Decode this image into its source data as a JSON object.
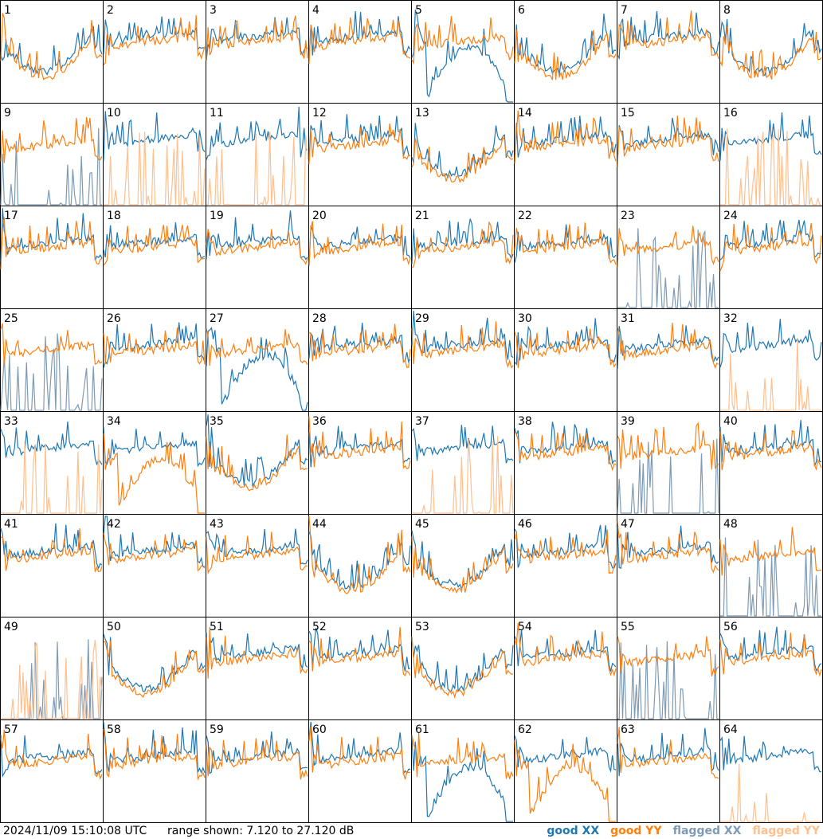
{
  "footer": {
    "timestamp": "2024/11/09 15:10:08 UTC",
    "range_label": "range shown: 7.120 to 27.120 dB"
  },
  "legend": [
    {
      "label": "good XX",
      "color": "#1f77b4"
    },
    {
      "label": "good YY",
      "color": "#ff7f0e"
    },
    {
      "label": "flagged XX",
      "color": "#7f9bb4"
    },
    {
      "label": "flagged YY",
      "color": "#ffc08f"
    }
  ],
  "chart_data": {
    "type": "line",
    "title": "",
    "ylim_db": [
      7.12,
      27.12
    ],
    "grid": "8x8 small multiples",
    "panel_ids": [
      1,
      2,
      3,
      4,
      5,
      6,
      7,
      8,
      9,
      10,
      11,
      12,
      13,
      14,
      15,
      16,
      17,
      18,
      19,
      20,
      21,
      22,
      23,
      24,
      25,
      26,
      27,
      28,
      29,
      30,
      31,
      32,
      33,
      34,
      35,
      36,
      37,
      38,
      39,
      40,
      41,
      42,
      43,
      44,
      45,
      46,
      47,
      48,
      49,
      50,
      51,
      52,
      53,
      54,
      55,
      56,
      57,
      58,
      59,
      60,
      61,
      62,
      63,
      64
    ],
    "flagged_xx_panels": [
      9,
      23,
      25,
      39,
      48,
      49,
      55
    ],
    "flagged_yy_panels": [
      10,
      11,
      16,
      32,
      33,
      37,
      49,
      64
    ],
    "dropout_xx_panels": [
      5,
      27,
      61
    ],
    "dropout_yy_panels": [
      34,
      62
    ],
    "anomalous_panels": [
      1,
      5,
      6,
      8,
      13,
      27,
      35,
      44,
      45,
      50,
      53,
      61,
      62
    ]
  }
}
